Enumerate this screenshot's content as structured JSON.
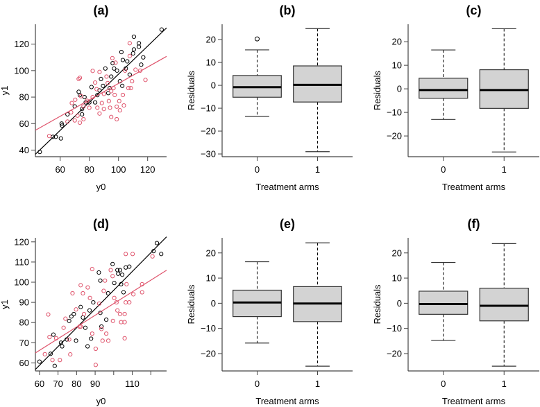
{
  "colors": {
    "control": "#000000",
    "treatment": "#DF536B",
    "box_fill": "#D3D3D3",
    "axis": "#444444"
  },
  "chart_data": [
    {
      "id": "a",
      "type": "scatter",
      "title": "(a)",
      "xlabel": "y0",
      "ylabel": "y1",
      "xlim": [
        43,
        133
      ],
      "ylim": [
        35,
        135
      ],
      "x_ticks": [
        60,
        80,
        100,
        120
      ],
      "x_tick_labels": [
        "60",
        "80",
        "100",
        "120"
      ],
      "y_ticks": [
        40,
        60,
        80,
        100,
        120
      ],
      "y_tick_labels": [
        "40",
        "60",
        "80",
        "100",
        "120"
      ],
      "series": [
        {
          "name": "black",
          "color": "#000000",
          "fit": {
            "intercept": -8.7,
            "slope": 1.06
          },
          "points": [
            [
              46,
              38.6
            ],
            [
              55,
              50
            ],
            [
              57,
              50
            ],
            [
              60.5,
              48.8
            ],
            [
              61,
              60
            ],
            [
              61.3,
              58.5
            ],
            [
              65,
              67
            ],
            [
              70,
              73
            ],
            [
              72.7,
              84
            ],
            [
              73.5,
              81.5
            ],
            [
              75,
              71
            ],
            [
              75,
              67
            ],
            [
              76.7,
              80
            ],
            [
              77.5,
              76
            ],
            [
              80,
              76
            ],
            [
              81.5,
              87.6
            ],
            [
              84,
              76
            ],
            [
              85.5,
              81.5
            ],
            [
              87,
              85
            ],
            [
              88,
              93.7
            ],
            [
              89.4,
              88.5
            ],
            [
              91,
              101.6
            ],
            [
              93,
              83
            ],
            [
              94,
              86.8
            ],
            [
              95,
              95.5
            ],
            [
              96,
              105.6
            ],
            [
              97,
              101.6
            ],
            [
              99,
              100
            ],
            [
              101,
              92
            ],
            [
              102.6,
              88.5
            ],
            [
              102,
              114
            ],
            [
              103,
              108
            ],
            [
              105,
              101.6
            ],
            [
              106,
              107
            ],
            [
              107.7,
              97
            ],
            [
              110,
              113
            ],
            [
              110.6,
              125.6
            ],
            [
              110.6,
              116
            ],
            [
              114,
              120.7
            ],
            [
              114,
              118
            ],
            [
              115.6,
              104.5
            ],
            [
              117,
              110
            ],
            [
              129.6,
              131
            ]
          ]
        },
        {
          "name": "red",
          "color": "#DF536B",
          "fit": {
            "intercept": 28.3,
            "slope": 0.62
          },
          "points": [
            [
              52.5,
              50.6
            ],
            [
              65,
              61.5
            ],
            [
              67.5,
              68.5
            ],
            [
              68,
              75.5
            ],
            [
              70,
              62.4
            ],
            [
              70.3,
              78
            ],
            [
              72.7,
              93.7
            ],
            [
              73.5,
              94.6
            ],
            [
              71.9,
              66
            ],
            [
              73.5,
              60.7
            ],
            [
              74.3,
              80.7
            ],
            [
              76,
              73
            ],
            [
              76,
              63.3
            ],
            [
              80,
              72
            ],
            [
              82.3,
              99.8
            ],
            [
              82.3,
              80
            ],
            [
              84,
              91
            ],
            [
              85.5,
              72
            ],
            [
              87,
              67.6
            ],
            [
              87,
              99
            ],
            [
              88.6,
              75.5
            ],
            [
              90,
              71
            ],
            [
              91.8,
              95.5
            ],
            [
              93.4,
              77
            ],
            [
              94.2,
              72
            ],
            [
              95,
              65
            ],
            [
              95.8,
              109.4
            ],
            [
              96.6,
              86.8
            ],
            [
              97.4,
              81.6
            ],
            [
              98,
              106
            ],
            [
              98.8,
              63.3
            ],
            [
              98.8,
              72.8
            ],
            [
              100.5,
              77
            ],
            [
              101,
              70
            ],
            [
              103,
              81.6
            ],
            [
              103.7,
              73.7
            ],
            [
              104.5,
              100
            ],
            [
              106.8,
              86.8
            ],
            [
              107.7,
              120.7
            ],
            [
              107.7,
              111
            ],
            [
              108.5,
              86.8
            ],
            [
              109.3,
              92
            ],
            [
              111.7,
              100.7
            ],
            [
              114.9,
              100
            ],
            [
              118.5,
              93
            ],
            [
              90,
              82.4
            ],
            [
              85,
              86
            ],
            [
              92.6,
              90.6
            ],
            [
              95,
              84.5
            ],
            [
              78.4,
              77.2
            ]
          ]
        }
      ]
    },
    {
      "id": "b",
      "type": "box",
      "title": "(b)",
      "xlabel": "Treatment arms",
      "ylabel": "Residuals",
      "ylim": [
        -31.2,
        26.7
      ],
      "y_ticks": [
        -30,
        -20,
        -10,
        0,
        10,
        20
      ],
      "y_tick_labels": [
        "−30",
        "−20",
        "−10",
        "0",
        "10",
        "20"
      ],
      "categories": [
        "0",
        "1"
      ],
      "boxes": [
        {
          "whisker_low": -13.5,
          "q1": -5.2,
          "median": -0.8,
          "q3": 4.3,
          "whisker_high": 15.5,
          "outliers": [
            20.3
          ]
        },
        {
          "whisker_low": -29,
          "q1": -7.3,
          "median": 0.2,
          "q3": 8.5,
          "whisker_high": 24.8,
          "outliers": []
        }
      ]
    },
    {
      "id": "c",
      "type": "box",
      "title": "(c)",
      "xlabel": "Treatment arms",
      "ylabel": "Residuals",
      "ylim": [
        -28.8,
        27.4
      ],
      "y_ticks": [
        -20,
        -10,
        0,
        10,
        20
      ],
      "y_tick_labels": [
        "−20",
        "−10",
        "0",
        "10",
        "20"
      ],
      "categories": [
        "0",
        "1"
      ],
      "boxes": [
        {
          "whisker_low": -13,
          "q1": -4,
          "median": -0.5,
          "q3": 4.5,
          "whisker_high": 16.5,
          "outliers": []
        },
        {
          "whisker_low": -26.8,
          "q1": -8.3,
          "median": -0.5,
          "q3": 8.1,
          "whisker_high": 25.5,
          "outliers": []
        }
      ]
    },
    {
      "id": "d",
      "type": "scatter",
      "title": "(d)",
      "xlabel": "y0",
      "ylabel": "y1",
      "xlim": [
        57.8,
        128.5
      ],
      "ylim": [
        56,
        122
      ],
      "x_ticks": [
        60,
        70,
        80,
        90,
        100,
        110,
        120
      ],
      "x_tick_labels": [
        "60",
        "70",
        "80",
        "90",
        "",
        "110",
        ""
      ],
      "y_ticks": [
        60,
        70,
        80,
        90,
        100,
        110,
        120
      ],
      "y_tick_labels": [
        "60",
        "70",
        "80",
        "90",
        "100",
        "110",
        "120"
      ],
      "series": [
        {
          "name": "black",
          "color": "#000000",
          "fit": {
            "intercept": 3,
            "slope": 0.93
          },
          "points": [
            [
              60,
              60.6
            ],
            [
              66,
              64.5
            ],
            [
              67.5,
              74
            ],
            [
              68.2,
              58.5
            ],
            [
              71.6,
              70
            ],
            [
              72.2,
              68.2
            ],
            [
              74.7,
              71.6
            ],
            [
              76,
              80.8
            ],
            [
              77.2,
              83
            ],
            [
              78.5,
              84.2
            ],
            [
              79.7,
              71
            ],
            [
              82.2,
              87.7
            ],
            [
              83.4,
              82.5
            ],
            [
              84.7,
              77.4
            ],
            [
              85.9,
              68.2
            ],
            [
              87,
              86
            ],
            [
              87.8,
              72
            ],
            [
              89,
              90
            ],
            [
              92,
              104.8
            ],
            [
              92.8,
              100.8
            ],
            [
              92.8,
              84.8
            ],
            [
              93.4,
              78
            ],
            [
              96,
              81.4
            ],
            [
              97,
              94.5
            ],
            [
              99.4,
              109
            ],
            [
              100.3,
              99.6
            ],
            [
              102,
              106
            ],
            [
              102.4,
              104.2
            ],
            [
              103.4,
              106
            ],
            [
              104,
              99
            ],
            [
              104.6,
              103.7
            ],
            [
              105.3,
              95
            ],
            [
              106.5,
              107.3
            ],
            [
              108.4,
              107.7
            ],
            [
              121.5,
              115.4
            ],
            [
              123.3,
              119.4
            ],
            [
              125.6,
              114
            ]
          ]
        },
        {
          "name": "red",
          "color": "#DF536B",
          "fit": {
            "intercept": 31.4,
            "slope": 0.58
          },
          "points": [
            [
              64.7,
              84
            ],
            [
              65.4,
              72.8
            ],
            [
              62.9,
              64.3
            ],
            [
              67,
              61.4
            ],
            [
              69,
              72.2
            ],
            [
              71,
              61.4
            ],
            [
              73,
              77.4
            ],
            [
              74,
              81.9
            ],
            [
              76,
              71.6
            ],
            [
              76.6,
              64.2
            ],
            [
              77.8,
              94.5
            ],
            [
              79.7,
              86.5
            ],
            [
              81.6,
              78
            ],
            [
              82.2,
              98.5
            ],
            [
              83.4,
              94.5
            ],
            [
              84,
              84.2
            ],
            [
              86,
              97.4
            ],
            [
              87.2,
              92.2
            ],
            [
              88.4,
              106.5
            ],
            [
              88.4,
              74.5
            ],
            [
              90.3,
              67
            ],
            [
              90.3,
              59
            ],
            [
              92.2,
              89.4
            ],
            [
              93.4,
              76.8
            ],
            [
              94,
              71
            ],
            [
              95.3,
              100.8
            ],
            [
              96,
              74.5
            ],
            [
              97.1,
              71
            ],
            [
              98.4,
              106
            ],
            [
              99.4,
              103
            ],
            [
              99.6,
              80.8
            ],
            [
              100.3,
              92.2
            ],
            [
              101.5,
              90
            ],
            [
              102,
              86
            ],
            [
              103.4,
              84.2
            ],
            [
              104,
              80.2
            ],
            [
              105.9,
              72.2
            ],
            [
              105.9,
              84.2
            ],
            [
              106.5,
              114
            ],
            [
              106.5,
              90
            ],
            [
              106.9,
              99
            ],
            [
              108.4,
              90
            ],
            [
              110.2,
              114
            ],
            [
              110.6,
              94
            ],
            [
              115.3,
              99
            ],
            [
              120.9,
              112.8
            ],
            [
              115.3,
              95
            ],
            [
              105.9,
              80.2
            ],
            [
              94.6,
              95.7
            ],
            [
              82.2,
              78
            ]
          ]
        }
      ]
    },
    {
      "id": "e",
      "type": "box",
      "title": "(e)",
      "xlabel": "Treatment arms",
      "ylabel": "Residuals",
      "ylim": [
        -26.9,
        26
      ],
      "y_ticks": [
        -20,
        -10,
        0,
        10,
        20
      ],
      "y_tick_labels": [
        "−20",
        "−10",
        "0",
        "10",
        "20"
      ],
      "categories": [
        "0",
        "1"
      ],
      "boxes": [
        {
          "whisker_low": -15.8,
          "q1": -5.3,
          "median": 0.3,
          "q3": 5.2,
          "whisker_high": 16.5,
          "outliers": []
        },
        {
          "whisker_low": -25,
          "q1": -7.3,
          "median": -0.1,
          "q3": 6.6,
          "whisker_high": 24,
          "outliers": []
        }
      ]
    },
    {
      "id": "f",
      "type": "box",
      "title": "(f)",
      "xlabel": "Treatment arms",
      "ylabel": "Residuals",
      "ylim": [
        -26.9,
        26
      ],
      "y_ticks": [
        -20,
        -10,
        0,
        10,
        20
      ],
      "y_tick_labels": [
        "−20",
        "−10",
        "0",
        "10",
        "20"
      ],
      "categories": [
        "0",
        "1"
      ],
      "boxes": [
        {
          "whisker_low": -14.8,
          "q1": -4.4,
          "median": -0.3,
          "q3": 4.8,
          "whisker_high": 16.2,
          "outliers": []
        },
        {
          "whisker_low": -25,
          "q1": -7,
          "median": -1,
          "q3": 6,
          "whisker_high": 23.7,
          "outliers": []
        }
      ]
    }
  ]
}
